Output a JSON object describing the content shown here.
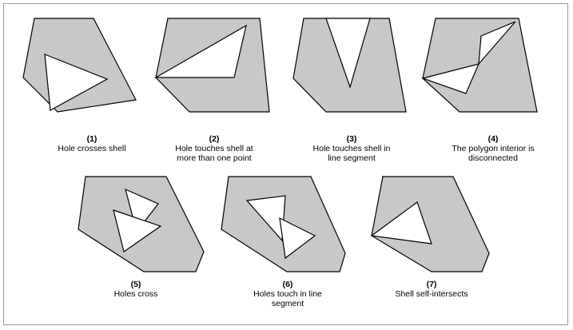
{
  "figures": [
    {
      "number": "(1)",
      "lines": [
        "Hole crosses shell"
      ]
    },
    {
      "number": "(2)",
      "lines": [
        "Hole touches shell at",
        "more than one point"
      ]
    },
    {
      "number": "(3)",
      "lines": [
        "Hole touches shell in",
        "line segment"
      ]
    },
    {
      "number": "(4)",
      "lines": [
        "The polygon interior is",
        "disconnected"
      ]
    },
    {
      "number": "(5)",
      "lines": [
        "Holes cross"
      ]
    },
    {
      "number": "(6)",
      "lines": [
        "Holes touch in line",
        "segment"
      ]
    },
    {
      "number": "(7)",
      "lines": [
        "Shell self-intersects"
      ]
    }
  ],
  "colors": {
    "shell_fill": "#c8c8c8",
    "hole_fill": "#ffffff",
    "outline": "#000000"
  }
}
